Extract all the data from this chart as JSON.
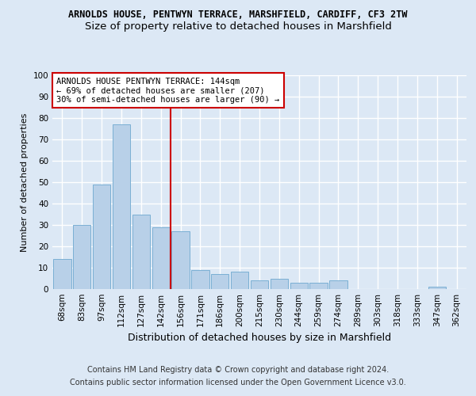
{
  "title1": "ARNOLDS HOUSE, PENTWYN TERRACE, MARSHFIELD, CARDIFF, CF3 2TW",
  "title2": "Size of property relative to detached houses in Marshfield",
  "xlabel": "Distribution of detached houses by size in Marshfield",
  "ylabel": "Number of detached properties",
  "categories": [
    "68sqm",
    "83sqm",
    "97sqm",
    "112sqm",
    "127sqm",
    "142sqm",
    "156sqm",
    "171sqm",
    "186sqm",
    "200sqm",
    "215sqm",
    "230sqm",
    "244sqm",
    "259sqm",
    "274sqm",
    "289sqm",
    "303sqm",
    "318sqm",
    "333sqm",
    "347sqm",
    "362sqm"
  ],
  "values": [
    14,
    30,
    49,
    77,
    35,
    29,
    27,
    9,
    7,
    8,
    4,
    5,
    3,
    3,
    4,
    0,
    0,
    0,
    0,
    1,
    0
  ],
  "bar_color": "#b8d0e8",
  "bar_edge_color": "#7aafd4",
  "vline_x": 5.5,
  "vline_color": "#cc0000",
  "annotation_text": "ARNOLDS HOUSE PENTWYN TERRACE: 144sqm\n← 69% of detached houses are smaller (207)\n30% of semi-detached houses are larger (90) →",
  "annotation_box_color": "#ffffff",
  "annotation_box_edge_color": "#cc0000",
  "ylim": [
    0,
    100
  ],
  "yticks": [
    0,
    10,
    20,
    30,
    40,
    50,
    60,
    70,
    80,
    90,
    100
  ],
  "footer1": "Contains HM Land Registry data © Crown copyright and database right 2024.",
  "footer2": "Contains public sector information licensed under the Open Government Licence v3.0.",
  "bg_color": "#dce8f5",
  "plot_bg_color": "#dce8f5",
  "grid_color": "#ffffff",
  "title1_fontsize": 8.5,
  "title2_fontsize": 9.5,
  "xlabel_fontsize": 9,
  "ylabel_fontsize": 8,
  "tick_fontsize": 7.5,
  "annotation_fontsize": 7.5,
  "footer_fontsize": 7
}
